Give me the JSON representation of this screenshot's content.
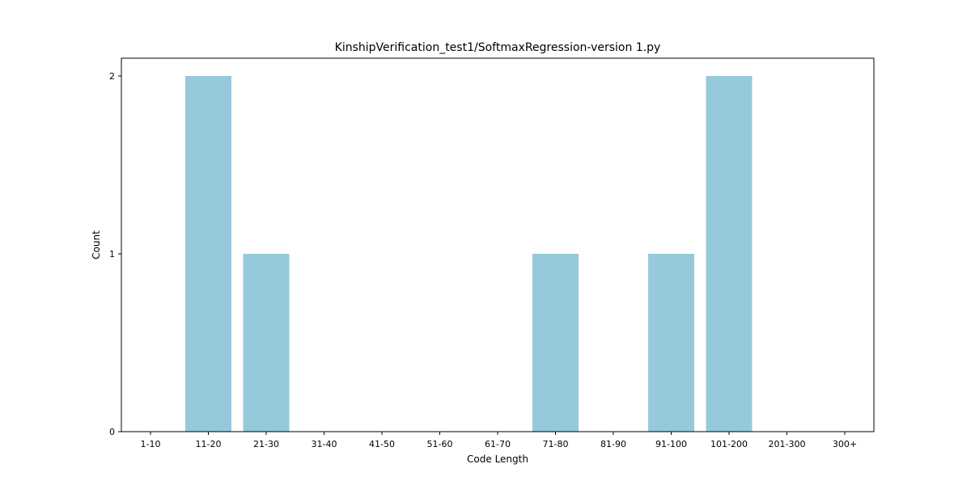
{
  "chart_data": {
    "type": "bar",
    "title": "KinshipVerification_test1/SoftmaxRegression-version 1.py",
    "xlabel": "Code Length",
    "ylabel": "Count",
    "categories": [
      "1-10",
      "11-20",
      "21-30",
      "31-40",
      "41-50",
      "51-60",
      "61-70",
      "71-80",
      "81-90",
      "91-100",
      "101-200",
      "201-300",
      "300+"
    ],
    "values": [
      0,
      2,
      1,
      0,
      0,
      0,
      0,
      1,
      0,
      1,
      2,
      0,
      0
    ],
    "ylim": [
      0,
      2.1
    ],
    "yticks": [
      0,
      1,
      2
    ],
    "bar_color": "#96c9dc",
    "grid": false,
    "legend": "none"
  }
}
